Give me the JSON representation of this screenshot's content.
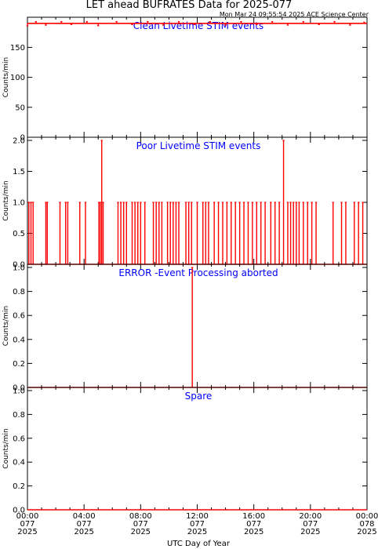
{
  "title": "LET ahead BUFRATES Data for 2025-077",
  "timestamp": "Mon Mar 24 09:55:54 2025 ACE Science Center",
  "colors": {
    "data": "#ff0000",
    "panel_label": "#0000ff",
    "axes": "#000000"
  },
  "chart_data": [
    {
      "type": "line",
      "title": "Clean Livetime STIM events",
      "ylabel": "Counts/min",
      "xlim": [
        0,
        24
      ],
      "ylim": [
        0,
        195
      ],
      "yticks": [
        0,
        50,
        100,
        150
      ],
      "x_units": "hours UTC",
      "series": [
        {
          "baseline": 190,
          "spikes": [
            [
              0.0,
              186
            ],
            [
              0.6,
              193
            ],
            [
              1.3,
              187
            ],
            [
              2.4,
              193
            ],
            [
              3.1,
              188
            ],
            [
              4.2,
              193
            ],
            [
              5.0,
              186
            ],
            [
              6.3,
              193
            ],
            [
              7.4,
              188
            ],
            [
              8.5,
              193
            ],
            [
              9.6,
              187
            ],
            [
              10.7,
              193
            ],
            [
              11.8,
              188
            ],
            [
              12.9,
              193
            ],
            [
              14.0,
              187
            ],
            [
              15.1,
              193
            ],
            [
              16.2,
              188
            ],
            [
              17.3,
              193
            ],
            [
              18.4,
              187
            ],
            [
              19.5,
              193
            ],
            [
              20.6,
              188
            ],
            [
              21.7,
              193
            ],
            [
              22.8,
              187
            ],
            [
              23.8,
              192
            ]
          ]
        }
      ]
    },
    {
      "type": "line",
      "title": "Poor Livetime STIM events",
      "ylabel": "Counts/min",
      "xlim": [
        0,
        24
      ],
      "ylim": [
        0,
        2
      ],
      "yticks": [
        0.0,
        0.5,
        1.0,
        1.5,
        2.0
      ],
      "x_units": "hours UTC",
      "series": [
        {
          "baseline": 0,
          "spikes": [
            [
              0.1,
              1
            ],
            [
              0.25,
              1
            ],
            [
              0.4,
              1
            ],
            [
              1.3,
              1
            ],
            [
              1.4,
              1
            ],
            [
              2.3,
              1
            ],
            [
              2.7,
              1
            ],
            [
              2.85,
              1
            ],
            [
              3.7,
              1
            ],
            [
              4.1,
              1
            ],
            [
              5.05,
              1
            ],
            [
              5.15,
              1
            ],
            [
              5.25,
              2
            ],
            [
              5.35,
              1
            ],
            [
              6.4,
              1
            ],
            [
              6.6,
              1
            ],
            [
              6.8,
              1
            ],
            [
              7.0,
              1
            ],
            [
              7.4,
              1
            ],
            [
              7.6,
              1
            ],
            [
              7.8,
              1
            ],
            [
              8.0,
              1
            ],
            [
              8.3,
              1
            ],
            [
              8.9,
              1
            ],
            [
              9.1,
              1
            ],
            [
              9.3,
              1
            ],
            [
              9.5,
              1
            ],
            [
              9.9,
              1
            ],
            [
              10.1,
              1
            ],
            [
              10.3,
              1
            ],
            [
              10.5,
              1
            ],
            [
              10.7,
              1
            ],
            [
              11.2,
              1
            ],
            [
              11.4,
              1
            ],
            [
              11.6,
              1
            ],
            [
              12.0,
              1
            ],
            [
              12.4,
              1
            ],
            [
              12.6,
              1
            ],
            [
              12.8,
              1
            ],
            [
              13.2,
              1
            ],
            [
              13.5,
              1
            ],
            [
              13.8,
              1
            ],
            [
              14.1,
              1
            ],
            [
              14.4,
              1
            ],
            [
              14.7,
              1
            ],
            [
              15.0,
              1
            ],
            [
              15.3,
              1
            ],
            [
              15.6,
              1
            ],
            [
              15.9,
              1
            ],
            [
              16.2,
              1
            ],
            [
              16.5,
              1
            ],
            [
              16.8,
              1
            ],
            [
              17.2,
              1
            ],
            [
              17.5,
              1
            ],
            [
              17.8,
              1
            ],
            [
              18.1,
              2
            ],
            [
              18.4,
              1
            ],
            [
              18.6,
              1
            ],
            [
              18.8,
              1
            ],
            [
              19.0,
              1
            ],
            [
              19.2,
              1
            ],
            [
              19.5,
              1
            ],
            [
              19.8,
              1
            ],
            [
              20.1,
              1
            ],
            [
              20.4,
              1
            ],
            [
              21.6,
              1
            ],
            [
              22.2,
              1
            ],
            [
              22.5,
              1
            ],
            [
              23.1,
              1
            ],
            [
              23.4,
              1
            ],
            [
              23.7,
              1
            ]
          ]
        }
      ]
    },
    {
      "type": "line",
      "title": "ERROR -Event Processing aborted",
      "ylabel": "Counts/min",
      "xlim": [
        0,
        24
      ],
      "ylim": [
        0,
        1
      ],
      "yticks": [
        0.0,
        0.2,
        0.4,
        0.6,
        0.8,
        1.0
      ],
      "x_units": "hours UTC",
      "series": [
        {
          "baseline": 0,
          "spikes": [
            [
              11.65,
              1
            ]
          ]
        }
      ]
    },
    {
      "type": "line",
      "title": "Spare",
      "ylabel": "Counts/min",
      "xlim": [
        0,
        24
      ],
      "ylim": [
        0,
        1
      ],
      "yticks": [
        0.0,
        0.2,
        0.4,
        0.6,
        0.8,
        1.0
      ],
      "x_units": "hours UTC",
      "series": [
        {
          "baseline": 0,
          "spikes": []
        }
      ]
    }
  ],
  "xaxis": {
    "label": "UTC Day of Year",
    "ticks": [
      {
        "x": 0,
        "lines": [
          "00:00",
          "077",
          "2025"
        ]
      },
      {
        "x": 4,
        "lines": [
          "04:00",
          "077",
          "2025"
        ]
      },
      {
        "x": 8,
        "lines": [
          "08:00",
          "077",
          "2025"
        ]
      },
      {
        "x": 12,
        "lines": [
          "12:00",
          "077",
          "2025"
        ]
      },
      {
        "x": 16,
        "lines": [
          "16:00",
          "077",
          "2025"
        ]
      },
      {
        "x": 20,
        "lines": [
          "20:00",
          "077",
          "2025"
        ]
      },
      {
        "x": 24,
        "lines": [
          "00:00",
          "078",
          "2025"
        ]
      }
    ]
  }
}
